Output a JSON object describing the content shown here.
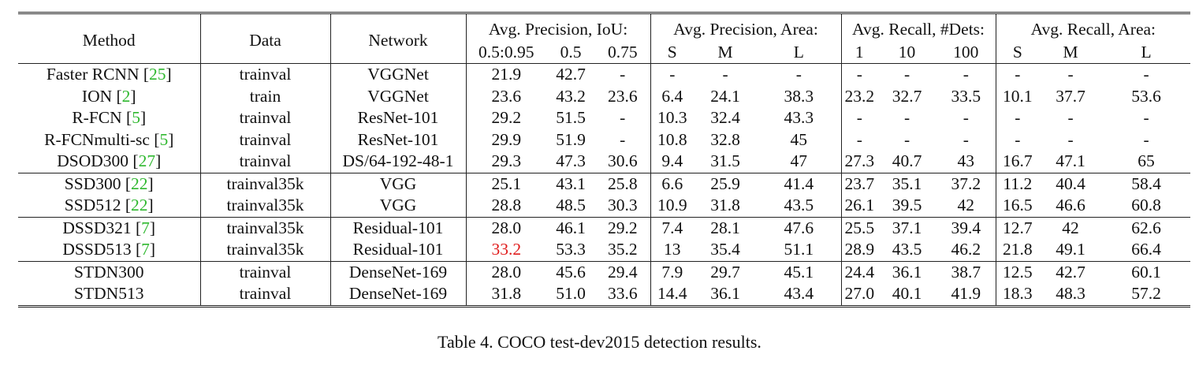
{
  "headers": {
    "method": "Method",
    "data": "Data",
    "network": "Network",
    "groups": [
      "Avg. Precision, IoU:",
      "Avg. Precision, Area:",
      "Avg. Recall, #Dets:",
      "Avg. Recall, Area:"
    ],
    "subcols": [
      "0.5:0.95",
      "0.5",
      "0.75",
      "S",
      "M",
      "L",
      "1",
      "10",
      "100",
      "S",
      "M",
      "L"
    ]
  },
  "rows": [
    {
      "method": "Faster RCNN",
      "ref": "25",
      "data": "trainval",
      "network": "VGGNet",
      "values": [
        "21.9",
        "42.7",
        "-",
        "-",
        "-",
        "-",
        "-",
        "-",
        "-",
        "-",
        "-",
        "-"
      ]
    },
    {
      "method": "ION",
      "ref": "2",
      "data": "train",
      "network": "VGGNet",
      "values": [
        "23.6",
        "43.2",
        "23.6",
        "6.4",
        "24.1",
        "38.3",
        "23.2",
        "32.7",
        "33.5",
        "10.1",
        "37.7",
        "53.6"
      ]
    },
    {
      "method": "R-FCN",
      "ref": "5",
      "data": "trainval",
      "network": "ResNet-101",
      "values": [
        "29.2",
        "51.5",
        "-",
        "10.3",
        "32.4",
        "43.3",
        "-",
        "-",
        "-",
        "-",
        "-",
        "-"
      ]
    },
    {
      "method": "R-FCNmulti-sc",
      "ref": "5",
      "data": "trainval",
      "network": "ResNet-101",
      "values": [
        "29.9",
        "51.9",
        "-",
        "10.8",
        "32.8",
        "45",
        "-",
        "-",
        "-",
        "-",
        "-",
        "-"
      ]
    },
    {
      "method": "DSOD300",
      "ref": "27",
      "data": "trainval",
      "network": "DS/64-192-48-1",
      "values": [
        "29.3",
        "47.3",
        "30.6",
        "9.4",
        "31.5",
        "47",
        "27.3",
        "40.7",
        "43",
        "16.7",
        "47.1",
        "65"
      ]
    },
    {
      "method": "SSD300",
      "ref": "22",
      "data": "trainval35k",
      "network": "VGG",
      "values": [
        "25.1",
        "43.1",
        "25.8",
        "6.6",
        "25.9",
        "41.4",
        "23.7",
        "35.1",
        "37.2",
        "11.2",
        "40.4",
        "58.4"
      ]
    },
    {
      "method": "SSD512",
      "ref": "22",
      "data": "trainval35k",
      "network": "VGG",
      "values": [
        "28.8",
        "48.5",
        "30.3",
        "10.9",
        "31.8",
        "43.5",
        "26.1",
        "39.5",
        "42",
        "16.5",
        "46.6",
        "60.8"
      ]
    },
    {
      "method": "DSSD321",
      "ref": "7",
      "data": "trainval35k",
      "network": "Residual-101",
      "values": [
        "28.0",
        "46.1",
        "29.2",
        "7.4",
        "28.1",
        "47.6",
        "25.5",
        "37.1",
        "39.4",
        "12.7",
        "42",
        "62.6"
      ]
    },
    {
      "method": "DSSD513",
      "ref": "7",
      "data": "trainval35k",
      "network": "Residual-101",
      "values": [
        "33.2",
        "53.3",
        "35.2",
        "13",
        "35.4",
        "51.1",
        "28.9",
        "43.5",
        "46.2",
        "21.8",
        "49.1",
        "66.4"
      ]
    },
    {
      "method": "STDN300",
      "ref": "",
      "data": "trainval",
      "network": "DenseNet-169",
      "values": [
        "28.0",
        "45.6",
        "29.4",
        "7.9",
        "29.7",
        "45.1",
        "24.4",
        "36.1",
        "38.7",
        "12.5",
        "42.7",
        "60.1"
      ]
    },
    {
      "method": "STDN513",
      "ref": "",
      "data": "trainval",
      "network": "DenseNet-169",
      "values": [
        "31.8",
        "51.0",
        "33.6",
        "14.4",
        "36.1",
        "43.4",
        "27.0",
        "40.1",
        "41.9",
        "18.3",
        "48.3",
        "57.2"
      ]
    }
  ],
  "highlights": {
    "best_color": "#e01b1b",
    "ref_color": "#2fb82f"
  },
  "caption": "Table 4. COCO test-dev2015 detection results."
}
